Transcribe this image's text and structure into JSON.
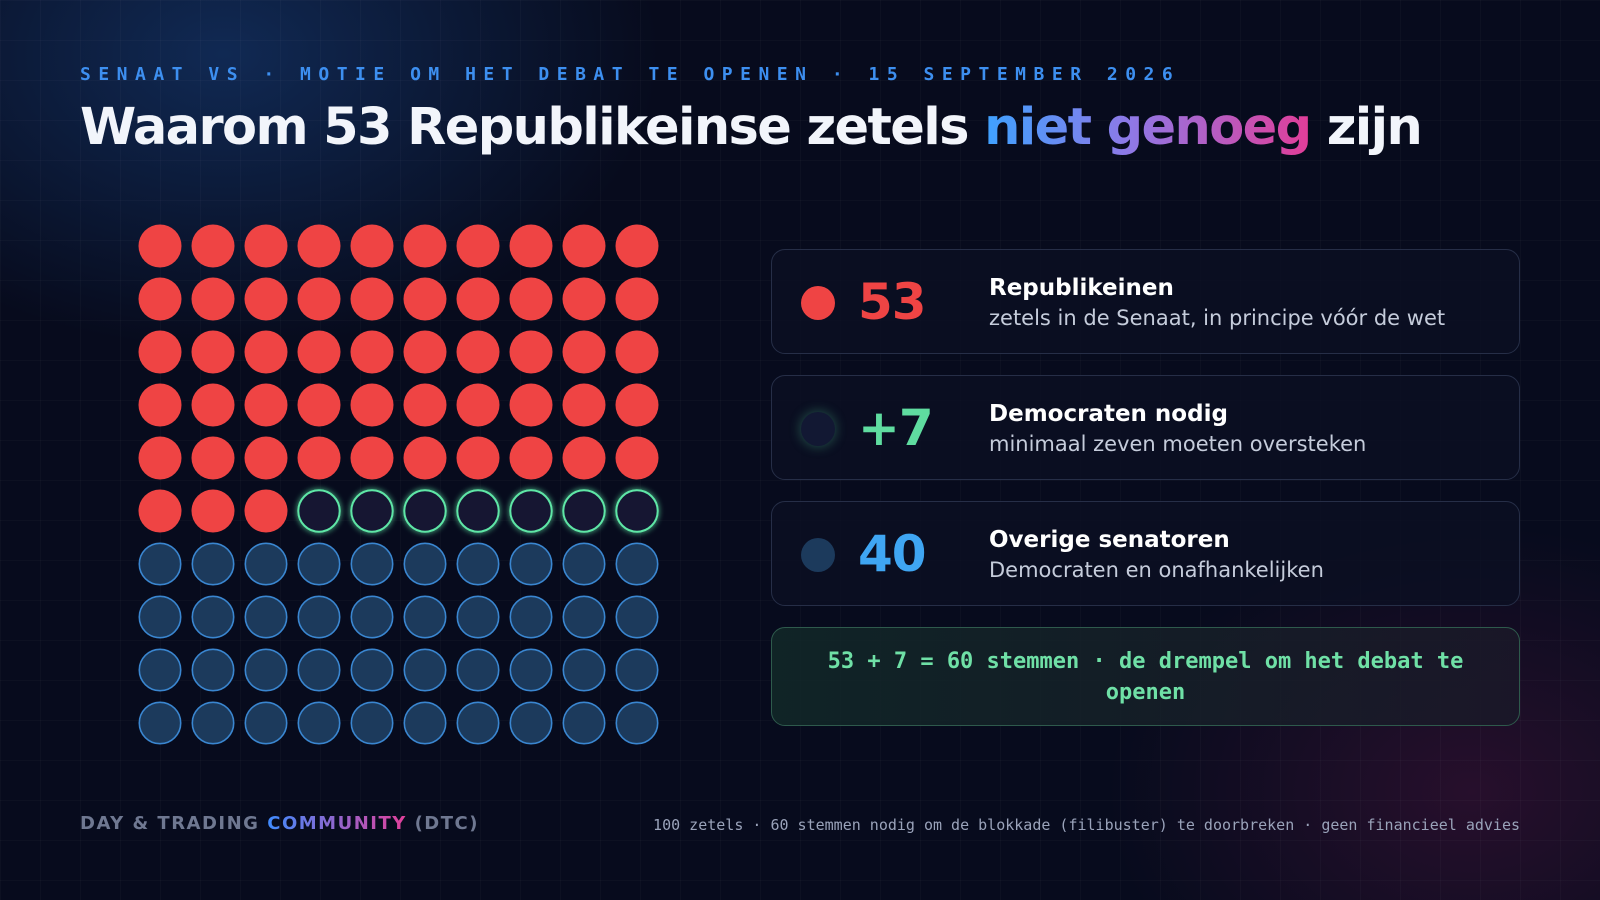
{
  "header": {
    "kicker": "SENAAT VS · MOTIE OM HET DEBAT TE OPENEN · 15 SEPTEMBER 2026",
    "title_part1": "Waarom 53 Republikeinse zetels",
    "title_highlight": "niet genoeg",
    "title_part2": "zijn"
  },
  "colors": {
    "republican": "#ef4444",
    "needed_fill": "#121833",
    "needed_stroke": "#5ee6a6",
    "other_fill": "#1c3a5c",
    "other_stroke": "#3a86d0",
    "green_text": "#5fdca0",
    "blue_text": "#3fa6f3"
  },
  "cards": [
    {
      "number": "53",
      "label": "Republikeinen",
      "desc": "zetels in de Senaat, in principe vóór de wet",
      "tone": "republican"
    },
    {
      "number": "+7",
      "label": "Democraten nodig",
      "desc": "minimaal zeven moeten oversteken",
      "tone": "needed"
    },
    {
      "number": "40",
      "label": "Overige senatoren",
      "desc": "Democraten en onafhankelijken",
      "tone": "other"
    }
  ],
  "equation": "53 + 7 = 60 stemmen · de drempel om het debat te openen",
  "footer": {
    "brand_part1": "DAY & TRADING",
    "brand_highlight": "COMMUNITY",
    "brand_part2": "(DTC)",
    "note": "100 zetels · 60 stemmen nodig om de blokkade (filibuster) te doorbreken · geen financieel advies"
  },
  "chart_data": {
    "type": "waffle",
    "total": 100,
    "rows": 10,
    "columns": 10,
    "series": [
      {
        "name": "Republikeinen",
        "value": 53
      },
      {
        "name": "Democraten nodig",
        "value": 7
      },
      {
        "name": "Overige senatoren",
        "value": 40
      }
    ],
    "threshold": 60
  }
}
